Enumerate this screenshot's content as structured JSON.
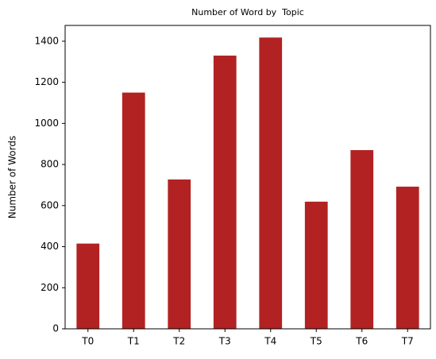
{
  "chart_data": {
    "type": "bar",
    "title": "Number of Word by  Topic",
    "ylabel": "Number of Words",
    "categories": [
      "T0",
      "T1",
      "T2",
      "T3",
      "T4",
      "T5",
      "T6",
      "T7"
    ],
    "values": [
      415,
      1150,
      727,
      1330,
      1418,
      619,
      870,
      692
    ],
    "color": "#b22222",
    "ylim": [
      0,
      1477
    ],
    "yticks": [
      0,
      200,
      400,
      600,
      800,
      1000,
      1200,
      1400
    ],
    "grid": false
  }
}
